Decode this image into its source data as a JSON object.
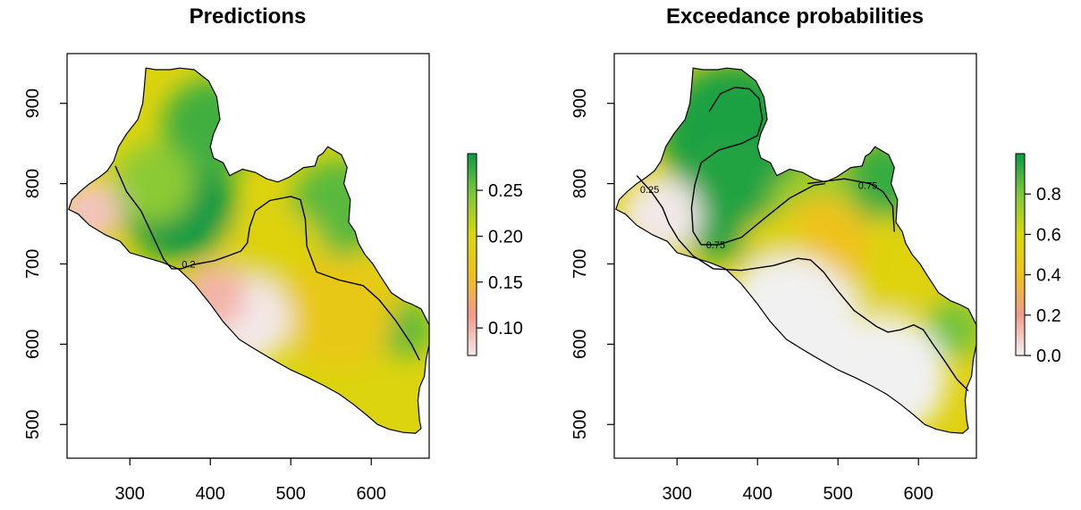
{
  "chart_data": [
    {
      "type": "heatmap",
      "title": "Predictions",
      "xlabel": "",
      "ylabel": "",
      "xlim": [
        222,
        672
      ],
      "ylim": [
        458,
        962
      ],
      "x_ticks": [
        300,
        400,
        500,
        600
      ],
      "y_ticks": [
        500,
        600,
        700,
        800,
        900
      ],
      "x_tick_labels": [
        "300",
        "400",
        "500",
        "600"
      ],
      "y_tick_labels": [
        "500",
        "600",
        "700",
        "800",
        "900"
      ],
      "legend": {
        "position": "right",
        "range": [
          0.07,
          0.29
        ],
        "ticks": [
          0.1,
          0.15,
          0.2,
          0.25
        ],
        "tick_labels": [
          "0.10",
          "0.15",
          "0.20",
          "0.25"
        ],
        "colors": [
          "#f3e8e8",
          "#f29b8c",
          "#eec21e",
          "#d8d80b",
          "#80c83a",
          "#0a9a45"
        ]
      },
      "contours": [
        {
          "label": "0.2",
          "points": [
            [
              282,
              822
            ],
            [
              296,
              790
            ],
            [
              314,
              766
            ],
            [
              328,
              736
            ],
            [
              342,
              706
            ],
            [
              352,
              694
            ],
            [
              364,
              694
            ],
            [
              378,
              699
            ],
            [
              405,
              704
            ],
            [
              422,
              710
            ],
            [
              438,
              716
            ],
            [
              446,
              726
            ],
            [
              449,
              746
            ],
            [
              456,
              766
            ],
            [
              474,
              779
            ],
            [
              500,
              784
            ],
            [
              512,
              780
            ],
            [
              518,
              756
            ],
            [
              520,
              722
            ],
            [
              532,
              690
            ],
            [
              560,
              680
            ],
            [
              590,
              673
            ],
            [
              610,
              655
            ],
            [
              630,
              630
            ],
            [
              650,
              600
            ],
            [
              660,
              580
            ]
          ],
          "label_at": [
            373,
            700
          ]
        }
      ],
      "hotspots": [
        {
          "x": 360,
          "y": 775,
          "value": 0.29,
          "r": 70
        },
        {
          "x": 400,
          "y": 870,
          "value": 0.27,
          "r": 60
        },
        {
          "x": 560,
          "y": 770,
          "value": 0.26,
          "r": 60
        },
        {
          "x": 640,
          "y": 620,
          "value": 0.26,
          "r": 35
        },
        {
          "x": 330,
          "y": 800,
          "value": 0.24,
          "r": 50
        },
        {
          "x": 480,
          "y": 705,
          "value": 0.19,
          "r": 65
        },
        {
          "x": 560,
          "y": 640,
          "value": 0.17,
          "r": 70
        },
        {
          "x": 445,
          "y": 630,
          "value": 0.07,
          "r": 55
        },
        {
          "x": 405,
          "y": 660,
          "value": 0.1,
          "r": 40
        },
        {
          "x": 250,
          "y": 765,
          "value": 0.09,
          "r": 40
        }
      ]
    },
    {
      "type": "heatmap",
      "title": "Exceedance probabilities",
      "xlabel": "",
      "ylabel": "",
      "xlim": [
        222,
        672
      ],
      "ylim": [
        458,
        962
      ],
      "x_ticks": [
        300,
        400,
        500,
        600
      ],
      "y_ticks": [
        500,
        600,
        700,
        800,
        900
      ],
      "x_tick_labels": [
        "300",
        "400",
        "500",
        "600"
      ],
      "y_tick_labels": [
        "500",
        "600",
        "700",
        "800",
        "900"
      ],
      "legend": {
        "position": "right",
        "range": [
          0.0,
          1.0
        ],
        "ticks": [
          0.0,
          0.2,
          0.4,
          0.6,
          0.8
        ],
        "tick_labels": [
          "0.0",
          "0.2",
          "0.4",
          "0.6",
          "0.8"
        ],
        "colors": [
          "#f1f1f1",
          "#f29b8c",
          "#eec21e",
          "#d8d80b",
          "#80c83a",
          "#0a9a45"
        ]
      },
      "contours": [
        {
          "label": "0.75",
          "points": [
            [
              340,
              890
            ],
            [
              354,
              912
            ],
            [
              372,
              920
            ],
            [
              390,
              918
            ],
            [
              402,
              906
            ],
            [
              406,
              880
            ],
            [
              400,
              860
            ],
            [
              380,
              850
            ],
            [
              352,
              842
            ],
            [
              330,
              826
            ],
            [
              322,
              798
            ],
            [
              318,
              770
            ],
            [
              320,
              740
            ],
            [
              330,
              724
            ],
            [
              352,
              724
            ],
            [
              380,
              733
            ],
            [
              410,
              758
            ],
            [
              440,
              782
            ],
            [
              470,
              798
            ],
            [
              484,
              800
            ]
          ],
          "label_at": [
            348,
            724
          ]
        },
        {
          "label": "0.75",
          "points": [
            [
              462,
              800
            ],
            [
              508,
              806
            ],
            [
              540,
              800
            ],
            [
              556,
              790
            ],
            [
              568,
              772
            ],
            [
              570,
              740
            ]
          ],
          "label_at": [
            537,
            798
          ]
        },
        {
          "label": "0.25",
          "points": [
            [
              250,
              810
            ],
            [
              268,
              790
            ],
            [
              282,
              770
            ],
            [
              290,
              750
            ],
            [
              302,
              730
            ],
            [
              320,
              710
            ],
            [
              345,
              694
            ],
            [
              380,
              692
            ],
            [
              420,
              698
            ],
            [
              450,
              707
            ],
            [
              466,
              705
            ],
            [
              482,
              690
            ],
            [
              500,
              666
            ],
            [
              520,
              642
            ],
            [
              548,
              622
            ],
            [
              562,
              615
            ],
            [
              578,
              618
            ],
            [
              594,
              624
            ],
            [
              606,
              618
            ],
            [
              618,
              600
            ],
            [
              632,
              580
            ],
            [
              648,
              556
            ],
            [
              662,
              542
            ]
          ],
          "label_at": [
            266,
            793
          ]
        }
      ],
      "hotspots": [
        {
          "x": 370,
          "y": 860,
          "value": 0.97,
          "r": 90
        },
        {
          "x": 360,
          "y": 780,
          "value": 0.96,
          "r": 75
        },
        {
          "x": 560,
          "y": 800,
          "value": 0.92,
          "r": 55
        },
        {
          "x": 470,
          "y": 770,
          "value": 0.75,
          "r": 55
        },
        {
          "x": 645,
          "y": 620,
          "value": 0.82,
          "r": 35
        },
        {
          "x": 560,
          "y": 700,
          "value": 0.55,
          "r": 60
        },
        {
          "x": 480,
          "y": 725,
          "value": 0.4,
          "r": 60
        },
        {
          "x": 420,
          "y": 720,
          "value": 0.55,
          "r": 40
        },
        {
          "x": 280,
          "y": 760,
          "value": 0.02,
          "r": 50
        },
        {
          "x": 440,
          "y": 620,
          "value": 0.0,
          "r": 90
        },
        {
          "x": 560,
          "y": 560,
          "value": 0.0,
          "r": 75
        }
      ]
    }
  ],
  "boundary": [
    [
      224,
      768
    ],
    [
      236,
      762
    ],
    [
      250,
      748
    ],
    [
      270,
      736
    ],
    [
      288,
      728
    ],
    [
      300,
      714
    ],
    [
      320,
      708
    ],
    [
      340,
      702
    ],
    [
      360,
      694
    ],
    [
      380,
      675
    ],
    [
      400,
      650
    ],
    [
      416,
      628
    ],
    [
      436,
      606
    ],
    [
      452,
      596
    ],
    [
      472,
      584
    ],
    [
      500,
      568
    ],
    [
      522,
      558
    ],
    [
      542,
      548
    ],
    [
      560,
      538
    ],
    [
      578,
      525
    ],
    [
      594,
      512
    ],
    [
      608,
      500
    ],
    [
      622,
      494
    ],
    [
      640,
      490
    ],
    [
      655,
      489
    ],
    [
      662,
      495
    ],
    [
      660,
      505
    ],
    [
      658,
      530
    ],
    [
      660,
      546
    ],
    [
      666,
      560
    ],
    [
      668,
      580
    ],
    [
      672,
      600
    ],
    [
      672,
      624
    ],
    [
      662,
      644
    ],
    [
      650,
      650
    ],
    [
      640,
      654
    ],
    [
      625,
      664
    ],
    [
      612,
      684
    ],
    [
      602,
      700
    ],
    [
      592,
      712
    ],
    [
      584,
      726
    ],
    [
      580,
      740
    ],
    [
      572,
      752
    ],
    [
      574,
      780
    ],
    [
      566,
      800
    ],
    [
      570,
      820
    ],
    [
      563,
      836
    ],
    [
      546,
      846
    ],
    [
      540,
      838
    ],
    [
      534,
      834
    ],
    [
      530,
      822
    ],
    [
      516,
      820
    ],
    [
      498,
      808
    ],
    [
      484,
      802
    ],
    [
      470,
      806
    ],
    [
      456,
      814
    ],
    [
      440,
      818
    ],
    [
      424,
      810
    ],
    [
      416,
      826
    ],
    [
      404,
      832
    ],
    [
      400,
      846
    ],
    [
      404,
      862
    ],
    [
      412,
      880
    ],
    [
      408,
      908
    ],
    [
      398,
      928
    ],
    [
      380,
      942
    ],
    [
      362,
      944
    ],
    [
      350,
      942
    ],
    [
      332,
      942
    ],
    [
      320,
      944
    ],
    [
      318,
      920
    ],
    [
      316,
      900
    ],
    [
      310,
      880
    ],
    [
      296,
      862
    ],
    [
      286,
      846
    ],
    [
      280,
      828
    ],
    [
      272,
      816
    ],
    [
      262,
      808
    ],
    [
      250,
      800
    ],
    [
      238,
      790
    ],
    [
      228,
      780
    ],
    [
      224,
      768
    ]
  ]
}
